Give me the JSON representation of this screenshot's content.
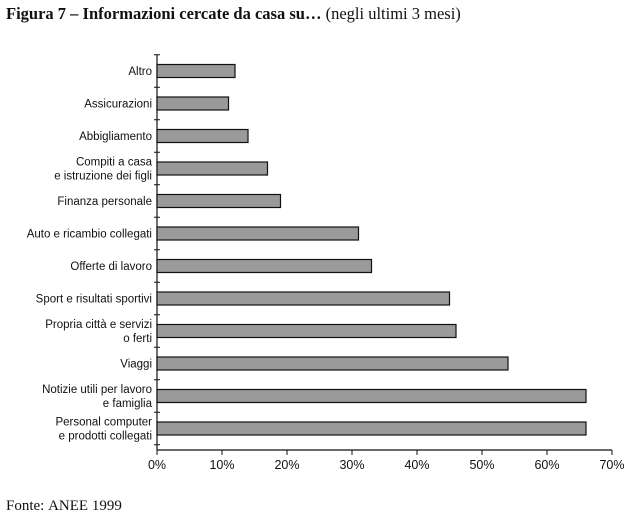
{
  "title": {
    "main": "Figura 7 – Informazioni cercate da casa su…",
    "sub": "(negli ultimi 3 mesi)"
  },
  "source": {
    "label": "Fonte:",
    "org": "ANEE",
    "year": "1999"
  },
  "chart_data": {
    "type": "bar",
    "orientation": "horizontal",
    "categories": [
      [
        "Altro"
      ],
      [
        "Assicurazioni"
      ],
      [
        "Abbigliamento"
      ],
      [
        "Compiti a casa",
        "e istruzione dei figli"
      ],
      [
        "Finanza personale"
      ],
      [
        "Auto e ricambio collegati"
      ],
      [
        "Offerte di lavoro"
      ],
      [
        "Sport e risultati sportivi"
      ],
      [
        "Propria città e servizi",
        "o ferti"
      ],
      [
        "Viaggi"
      ],
      [
        "Notizie utili per lavoro",
        "e famiglia"
      ],
      [
        "Personal computer",
        "e prodotti collegati"
      ]
    ],
    "values": [
      12,
      11,
      14,
      17,
      19,
      31,
      33,
      45,
      46,
      54,
      66,
      66
    ],
    "xlim": [
      0,
      70
    ],
    "xticks": [
      0,
      10,
      20,
      30,
      40,
      50,
      60,
      70
    ],
    "tick_suffix": "%",
    "bar_color": "#9a9a9a",
    "bar_edge_color": "#111111",
    "grid": false
  }
}
